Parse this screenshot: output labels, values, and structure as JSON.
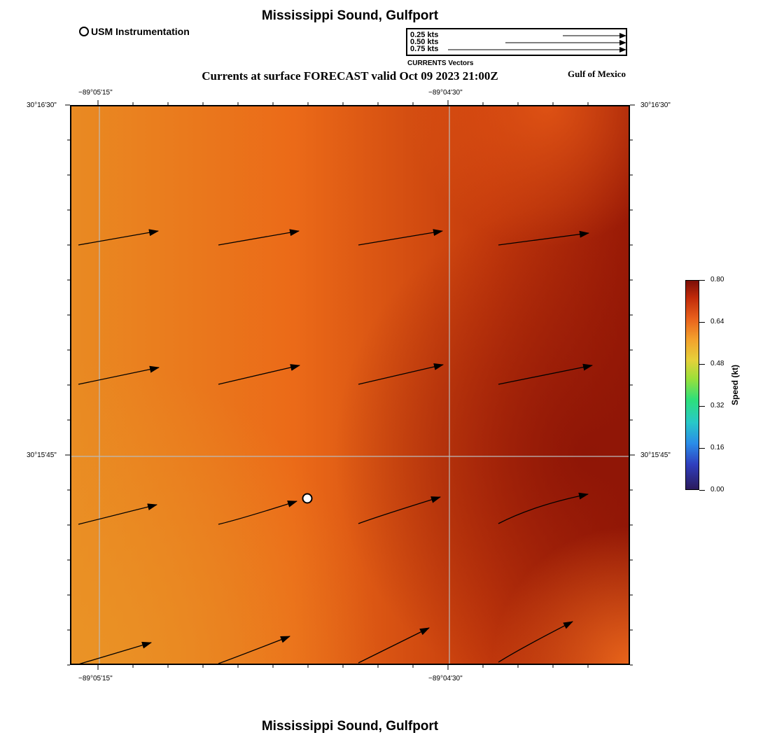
{
  "title_top": "Mississippi Sound, Gulfport",
  "title_bottom": "Mississippi Sound, Gulfport",
  "usm_legend": "USM Instrumentation",
  "vector_legend": {
    "rows": [
      {
        "label": "0.25 kts",
        "speed": 0.25
      },
      {
        "label": "0.50 kts",
        "speed": 0.5
      },
      {
        "label": "0.75 kts",
        "speed": 0.75
      }
    ],
    "caption": "CURRENTS Vectors"
  },
  "subtitle": "Currents at surface FORECAST valid Oct 09 2023 21:00Z",
  "region": "Gulf of Mexico",
  "axes": {
    "lon_top": [
      "−89°05'15\"",
      "−89°04'30\""
    ],
    "lon_bottom": [
      "−89°05'15\"",
      "−89°04'30\""
    ],
    "lat_left": [
      "30°16'30\"",
      "30°15'45\""
    ],
    "lat_right": [
      "30°16'30\"",
      "30°15'45\""
    ]
  },
  "colorbar": {
    "title": "Speed (kt)",
    "ticks": [
      "0.80",
      "0.64",
      "0.48",
      "0.32",
      "0.16",
      "0.00"
    ]
  },
  "colors": {
    "frame": "#000000",
    "grid": "#bbbbbb",
    "vector": "#000000"
  }
}
